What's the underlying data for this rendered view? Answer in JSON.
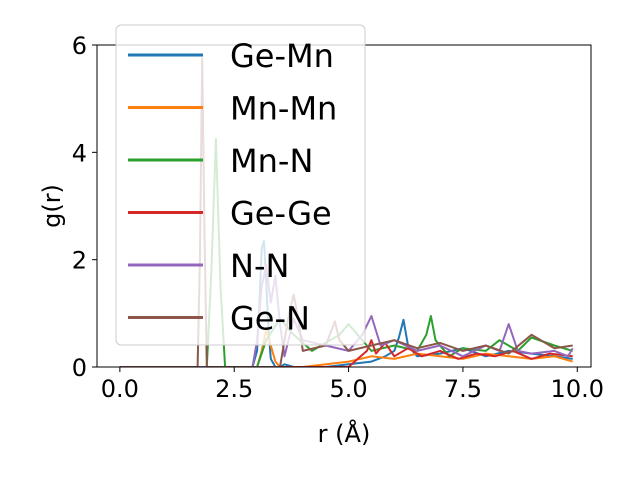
{
  "chart_data": {
    "type": "line",
    "title": "",
    "xlabel": "r (Å)",
    "ylabel": "g(r)",
    "xlim": [
      -0.5,
      10.3
    ],
    "ylim": [
      0,
      6
    ],
    "xticks": [
      0.0,
      2.5,
      5.0,
      7.5,
      10.0
    ],
    "xtick_labels": [
      "0.0",
      "2.5",
      "5.0",
      "7.5",
      "10.0"
    ],
    "yticks": [
      0,
      2,
      4,
      6
    ],
    "ytick_labels": [
      "0",
      "2",
      "4",
      "6"
    ],
    "grid": false,
    "legend": "upper-left",
    "series": [
      {
        "name": "Ge-Mn",
        "color": "#1f77b4",
        "x": [
          0.0,
          2.9,
          3.0,
          3.05,
          3.1,
          3.15,
          3.2,
          3.25,
          3.3,
          3.4,
          3.5,
          3.6,
          3.8,
          4.0,
          4.5,
          5.0,
          5.5,
          5.8,
          6.0,
          6.1,
          6.2,
          6.3,
          6.5,
          7.0,
          7.5,
          8.0,
          8.5,
          9.0,
          9.5,
          9.9
        ],
        "y": [
          0.0,
          0.0,
          0.3,
          1.2,
          2.2,
          2.35,
          1.6,
          0.7,
          0.15,
          0.0,
          0.0,
          0.05,
          0.0,
          0.0,
          0.0,
          0.05,
          0.1,
          0.2,
          0.3,
          0.55,
          0.88,
          0.4,
          0.2,
          0.25,
          0.35,
          0.2,
          0.3,
          0.25,
          0.2,
          0.15
        ]
      },
      {
        "name": "Mn-Mn",
        "color": "#ff7f0e",
        "x": [
          0.0,
          3.0,
          3.1,
          3.2,
          3.3,
          3.4,
          3.5,
          4.0,
          5.0,
          5.5,
          6.0,
          6.5,
          7.0,
          7.5,
          8.0,
          8.5,
          9.0,
          9.5,
          9.9
        ],
        "y": [
          0.0,
          0.0,
          0.3,
          0.7,
          0.4,
          0.1,
          0.0,
          0.0,
          0.1,
          0.2,
          0.15,
          0.25,
          0.2,
          0.15,
          0.25,
          0.2,
          0.15,
          0.2,
          0.1
        ]
      },
      {
        "name": "Mn-N",
        "color": "#2ca02c",
        "x": [
          0.0,
          1.9,
          2.0,
          2.1,
          2.2,
          2.3,
          3.0,
          3.2,
          3.5,
          3.8,
          4.2,
          4.8,
          5.0,
          5.5,
          6.0,
          6.5,
          6.7,
          6.8,
          6.9,
          7.2,
          7.5,
          8.0,
          8.3,
          8.7,
          9.0,
          9.5,
          9.9
        ],
        "y": [
          0.0,
          0.0,
          1.8,
          4.25,
          1.5,
          0.0,
          0.0,
          0.5,
          0.9,
          0.6,
          0.3,
          0.6,
          0.8,
          0.3,
          0.4,
          0.3,
          0.6,
          0.95,
          0.5,
          0.2,
          0.35,
          0.3,
          0.5,
          0.3,
          0.55,
          0.4,
          0.3
        ]
      },
      {
        "name": "Ge-Ge",
        "color": "#d62728",
        "x": [
          0.0,
          5.0,
          5.2,
          5.4,
          5.5,
          5.6,
          5.8,
          6.0,
          6.3,
          6.6,
          7.0,
          7.4,
          7.8,
          8.2,
          8.6,
          9.0,
          9.4,
          9.9
        ],
        "y": [
          0.0,
          0.0,
          0.15,
          0.3,
          0.5,
          0.25,
          0.45,
          0.2,
          0.35,
          0.2,
          0.3,
          0.15,
          0.25,
          0.2,
          0.3,
          0.15,
          0.25,
          0.2
        ]
      },
      {
        "name": "N-N",
        "color": "#9467bd",
        "x": [
          0.0,
          2.9,
          3.0,
          3.1,
          3.2,
          3.3,
          3.4,
          3.5,
          3.6,
          3.8,
          4.0,
          4.5,
          5.0,
          5.3,
          5.5,
          5.7,
          6.0,
          6.5,
          7.0,
          7.5,
          8.0,
          8.3,
          8.5,
          8.7,
          9.0,
          9.5,
          9.8,
          9.9
        ],
        "y": [
          0.0,
          0.0,
          0.5,
          1.5,
          1.9,
          1.2,
          1.7,
          0.8,
          0.2,
          0.9,
          0.5,
          0.4,
          0.3,
          0.6,
          0.95,
          0.4,
          0.5,
          0.3,
          0.4,
          0.2,
          0.4,
          0.3,
          0.8,
          0.3,
          0.25,
          0.3,
          0.2,
          0.35
        ]
      },
      {
        "name": "Ge-N",
        "color": "#8c564b",
        "x": [
          0.0,
          1.7,
          1.75,
          1.8,
          1.85,
          1.9,
          2.0,
          3.5,
          3.7,
          3.8,
          3.9,
          4.0,
          4.5,
          4.7,
          4.8,
          5.0,
          5.5,
          6.0,
          6.5,
          7.0,
          7.5,
          8.0,
          8.5,
          9.0,
          9.5,
          9.9
        ],
        "y": [
          0.0,
          0.0,
          2.0,
          5.75,
          2.5,
          0.0,
          0.0,
          0.0,
          1.0,
          1.35,
          0.9,
          0.3,
          0.4,
          0.85,
          0.5,
          0.3,
          0.4,
          0.5,
          0.35,
          0.45,
          0.3,
          0.4,
          0.25,
          0.6,
          0.35,
          0.4
        ]
      }
    ]
  }
}
